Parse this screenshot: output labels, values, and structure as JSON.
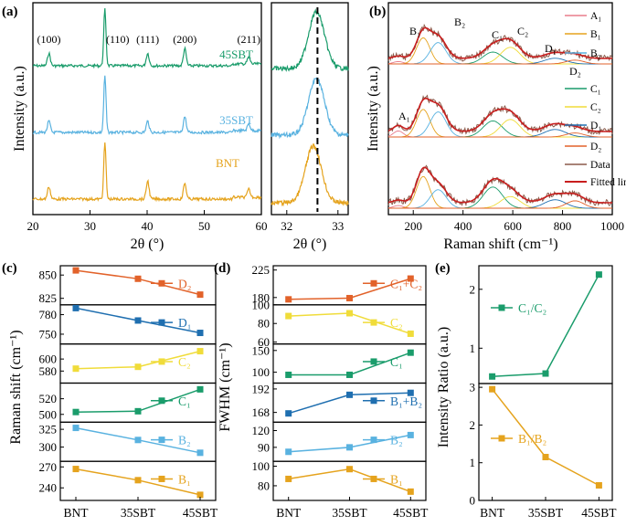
{
  "colors": {
    "BNT": "#e5a31d",
    "35SBT": "#59b2e0",
    "45SBT": "#1a9c6b",
    "D2": "#e2622a",
    "D1": "#1f6fb0",
    "C2": "#f0dc3a",
    "C1": "#1a9c6b",
    "B2": "#59b2e0",
    "B1": "#e5a31d",
    "C1C2": "#e2622a",
    "B1B2": "#1f6fb0",
    "ratioC": "#1a9c6b",
    "ratioB": "#e5a31d",
    "A1": "#e87d8c",
    "data_line": "#8c5a4a",
    "fit_line": "#c81e1e"
  },
  "chart_data": [
    {
      "panel": "(a)",
      "type": "line",
      "xlabel": "2θ (°)",
      "ylabel": "Intensity (a.u.)",
      "xlim": [
        20,
        60
      ],
      "xticks": [
        "20",
        "30",
        "40",
        "50",
        "60"
      ],
      "peak_labels": [
        {
          "label": "(100)",
          "x": 22.8
        },
        {
          "label": "(110)",
          "x": 32.6
        },
        {
          "label": "(111)",
          "x": 40.1
        },
        {
          "label": "(200)",
          "x": 46.6
        },
        {
          "label": "(211)",
          "x": 57.8
        }
      ],
      "series": [
        {
          "name": "45SBT",
          "peaks": [
            [
              22.8,
              0.22
            ],
            [
              32.6,
              1.0
            ],
            [
              40.1,
              0.22
            ],
            [
              46.6,
              0.3
            ],
            [
              57.8,
              0.12
            ]
          ]
        },
        {
          "name": "35SBT",
          "peaks": [
            [
              22.8,
              0.2
            ],
            [
              32.6,
              1.0
            ],
            [
              40.1,
              0.2
            ],
            [
              46.6,
              0.28
            ],
            [
              57.8,
              0.12
            ]
          ]
        },
        {
          "name": "BNT",
          "peaks": [
            [
              22.8,
              0.22
            ],
            [
              32.6,
              1.0
            ],
            [
              40.1,
              0.32
            ],
            [
              46.6,
              0.28
            ],
            [
              57.8,
              0.14
            ]
          ]
        }
      ]
    },
    {
      "panel": "(a) inset",
      "type": "line",
      "xlabel": "2θ (°)",
      "xlim": [
        31.7,
        33.2
      ],
      "xticks": [
        "32",
        "33"
      ],
      "dashed_line_x": 32.6,
      "series": [
        {
          "name": "45SBT",
          "center": 32.58
        },
        {
          "name": "35SBT",
          "center": 32.58
        },
        {
          "name": "BNT",
          "center": 32.52
        }
      ]
    },
    {
      "panel": "(b)",
      "type": "line",
      "xlabel": "Raman shift (cm⁻¹)",
      "ylabel": "Intensity (a.u.)",
      "xlim": [
        100,
        1000
      ],
      "xticks": [
        "200",
        "400",
        "600",
        "800",
        "1000"
      ],
      "mode_labels": [
        "A₁",
        "B₁",
        "B₂",
        "C₁",
        "C₂",
        "D₁",
        "D₂"
      ],
      "legend": [
        "A₁",
        "B₁",
        "B₂",
        "C₁",
        "C₂",
        "D₁",
        "D₂",
        "Data",
        "Fitted line"
      ],
      "legend_placement": "right",
      "components": [
        {
          "name": "A₁",
          "center": 140,
          "width": 28
        },
        {
          "name": "B₁",
          "center": 240,
          "width": 38
        },
        {
          "name": "B₂",
          "center": 300,
          "width": 45
        },
        {
          "name": "C₁",
          "center": 520,
          "width": 55
        },
        {
          "name": "C₂",
          "center": 590,
          "width": 55
        },
        {
          "name": "D₁",
          "center": 770,
          "width": 60
        },
        {
          "name": "D₂",
          "center": 850,
          "width": 50
        }
      ]
    },
    {
      "panel": "(c)",
      "type": "line",
      "ylabel": "Raman shift (cm⁻¹)",
      "categories": [
        "BNT",
        "35SBT",
        "45SBT"
      ],
      "subplots": [
        {
          "name": "D₂",
          "color_key": "D2",
          "ylim": [
            818,
            860
          ],
          "yticks": [
            "825",
            "850"
          ],
          "values": [
            855,
            846,
            829
          ]
        },
        {
          "name": "D₁",
          "color_key": "D1",
          "ylim": [
            735,
            795
          ],
          "yticks": [
            "750",
            "780"
          ],
          "values": [
            790,
            771,
            752
          ]
        },
        {
          "name": "C₂",
          "color_key": "C2",
          "ylim": [
            560,
            625
          ],
          "yticks": [
            "580",
            "600"
          ],
          "values": [
            584,
            587,
            613
          ]
        },
        {
          "name": "C₁",
          "color_key": "C1",
          "ylim": [
            490,
            540
          ],
          "yticks": [
            "500",
            "520"
          ],
          "values": [
            503,
            504,
            532
          ]
        },
        {
          "name": "B₂",
          "color_key": "B2",
          "ylim": [
            280,
            335
          ],
          "yticks": [
            "300",
            "325"
          ],
          "values": [
            327,
            310,
            292
          ]
        },
        {
          "name": "B₁",
          "color_key": "B1",
          "ylim": [
            222,
            278
          ],
          "yticks": [
            "240",
            "270"
          ],
          "values": [
            267,
            251,
            230
          ]
        }
      ]
    },
    {
      "panel": "(d)",
      "type": "line",
      "ylabel": "FWHM (cm⁻¹)",
      "categories": [
        "BNT",
        "35SBT",
        "45SBT"
      ],
      "subplots": [
        {
          "name": "C₁+C₂",
          "color_key": "C1C2",
          "ylim": [
            168,
            232
          ],
          "yticks": [
            "180",
            "225"
          ],
          "values": [
            177,
            179,
            211
          ]
        },
        {
          "name": "C₂",
          "color_key": "C2",
          "ylim": [
            58,
            100
          ],
          "yticks": [
            "60",
            "80",
            "100"
          ],
          "values": [
            88,
            91,
            69
          ]
        },
        {
          "name": "C₁",
          "color_key": "C1",
          "ylim": [
            75,
            165
          ],
          "yticks": [
            "100",
            "150"
          ],
          "values": [
            94,
            94,
            145
          ]
        },
        {
          "name": "B₁+B₂",
          "color_key": "B1B2",
          "ylim": [
            158,
            198
          ],
          "yticks": [
            "168",
            "192"
          ],
          "values": [
            167,
            186,
            188
          ]
        },
        {
          "name": "B₂",
          "color_key": "B2",
          "ylim": [
            65,
            135
          ],
          "yticks": [
            "90",
            "120"
          ],
          "values": [
            82,
            90,
            112
          ]
        },
        {
          "name": "B₁",
          "color_key": "B1",
          "ylim": [
            65,
            105
          ],
          "yticks": [
            "80",
            "100"
          ],
          "values": [
            87,
            97,
            74
          ]
        }
      ]
    },
    {
      "panel": "(e)",
      "type": "line",
      "ylabel": "Intensity Ratio (a.u.)",
      "categories": [
        "BNT",
        "35SBT",
        "45SBT"
      ],
      "subplots": [
        {
          "name": "C₁/C₂",
          "color_key": "ratioC",
          "ylim": [
            0.4,
            2.4
          ],
          "yticks": [
            "1",
            "2"
          ],
          "values": [
            0.52,
            0.57,
            2.25
          ]
        },
        {
          "name": "B₁/B₂",
          "color_key": "ratioB",
          "ylim": [
            0,
            3.1
          ],
          "yticks": [
            "0",
            "1",
            "2",
            "3"
          ],
          "values": [
            2.95,
            1.15,
            0.4
          ]
        }
      ]
    }
  ]
}
